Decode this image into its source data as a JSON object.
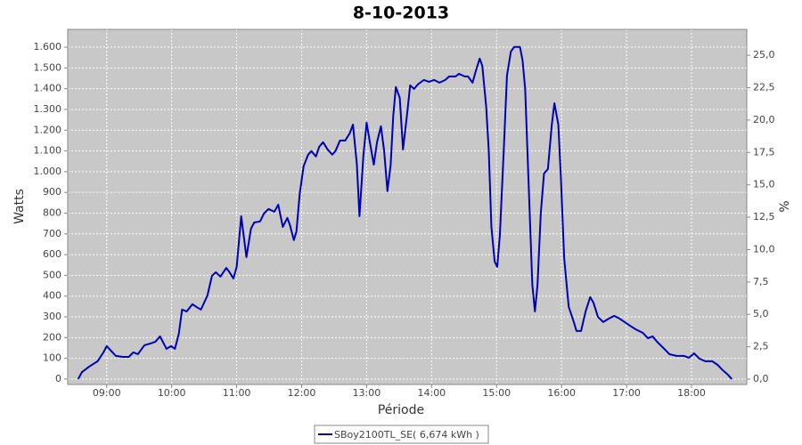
{
  "chart_data": {
    "type": "line",
    "title": "8-10-2013",
    "x_label": "Période",
    "y_label": "Watts",
    "y2_label": "%",
    "grid": true,
    "legend_position": "bottom",
    "xlim": [
      8.4,
      18.85
    ],
    "xticks": [
      {
        "value": 9,
        "label": "09:00"
      },
      {
        "value": 10,
        "label": "10:00"
      },
      {
        "value": 11,
        "label": "11:00"
      },
      {
        "value": 12,
        "label": "12:00"
      },
      {
        "value": 13,
        "label": "13:00"
      },
      {
        "value": 14,
        "label": "14:00"
      },
      {
        "value": 15,
        "label": "15:00"
      },
      {
        "value": 16,
        "label": "16:00"
      },
      {
        "value": 17,
        "label": "17:00"
      },
      {
        "value": 18,
        "label": "18:00"
      }
    ],
    "ylim": [
      -26,
      1686
    ],
    "yticks": [
      0,
      100,
      200,
      300,
      400,
      500,
      600,
      700,
      800,
      900,
      {
        "value": 1000,
        "label": "1.000"
      },
      {
        "value": 1100,
        "label": "1.100"
      },
      {
        "value": 1200,
        "label": "1.200"
      },
      {
        "value": 1300,
        "label": "1.300"
      },
      {
        "value": 1400,
        "label": "1.400"
      },
      {
        "value": 1500,
        "label": "1.500"
      },
      {
        "value": 1600,
        "label": "1.600"
      }
    ],
    "y2lim": [
      -0.41,
      27.0
    ],
    "y2ticks": [
      {
        "value": 0,
        "label": "0,0"
      },
      {
        "value": 2.5,
        "label": "2,5"
      },
      {
        "value": 5,
        "label": "5,0"
      },
      {
        "value": 7.5,
        "label": "7,5"
      },
      {
        "value": 10,
        "label": "10,0"
      },
      {
        "value": 12.5,
        "label": "12,5"
      },
      {
        "value": 15,
        "label": "15,0"
      },
      {
        "value": 17.5,
        "label": "17,5"
      },
      {
        "value": 20,
        "label": "20,0"
      },
      {
        "value": 22.5,
        "label": "22,5"
      },
      {
        "value": 25,
        "label": "25,0"
      }
    ],
    "x": [
      8.56,
      8.62,
      8.73,
      8.86,
      8.95,
      9.0,
      9.05,
      9.14,
      9.25,
      9.34,
      9.41,
      9.48,
      9.58,
      9.68,
      9.75,
      9.82,
      9.92,
      9.99,
      10.05,
      10.11,
      10.16,
      10.23,
      10.32,
      10.38,
      10.45,
      10.55,
      10.62,
      10.68,
      10.75,
      10.84,
      10.89,
      10.95,
      11.0,
      11.07,
      11.15,
      11.22,
      11.27,
      11.36,
      11.42,
      11.49,
      11.58,
      11.64,
      11.71,
      11.78,
      11.82,
      11.88,
      11.92,
      11.97,
      12.03,
      12.1,
      12.15,
      12.22,
      12.27,
      12.33,
      12.4,
      12.47,
      12.52,
      12.59,
      12.67,
      12.74,
      12.79,
      12.85,
      12.89,
      12.95,
      13.0,
      13.05,
      13.11,
      13.16,
      13.22,
      13.27,
      13.32,
      13.37,
      13.41,
      13.45,
      13.51,
      13.56,
      13.62,
      13.67,
      13.73,
      13.79,
      13.88,
      13.96,
      14.04,
      14.12,
      14.21,
      14.27,
      14.37,
      14.42,
      14.51,
      14.56,
      14.63,
      14.68,
      14.74,
      14.78,
      14.84,
      14.88,
      14.92,
      14.97,
      15.01,
      15.05,
      15.11,
      15.16,
      15.22,
      15.27,
      15.36,
      15.4,
      15.44,
      15.49,
      15.55,
      15.59,
      15.63,
      15.68,
      15.73,
      15.79,
      15.85,
      15.89,
      15.95,
      15.99,
      16.04,
      16.11,
      16.18,
      16.23,
      16.3,
      16.37,
      16.44,
      16.49,
      16.56,
      16.64,
      16.73,
      16.81,
      16.89,
      16.97,
      17.05,
      17.14,
      17.25,
      17.33,
      17.4,
      17.47,
      17.58,
      17.66,
      17.77,
      17.88,
      17.96,
      18.04,
      18.12,
      18.21,
      18.32,
      18.4,
      18.48,
      18.56,
      18.62
    ],
    "series": [
      {
        "name": "SBoy2100TL_SE( 6,674 kWh )",
        "color": "#0000b4",
        "values": [
          0,
          34,
          60,
          86,
          129,
          159,
          142,
          112,
          107,
          107,
          129,
          120,
          163,
          172,
          180,
          206,
          146,
          159,
          146,
          219,
          335,
          326,
          361,
          348,
          335,
          403,
          498,
          515,
          494,
          536,
          515,
          485,
          541,
          785,
          588,
          725,
          755,
          760,
          798,
          820,
          807,
          841,
          734,
          777,
          742,
          670,
          712,
          893,
          1026,
          1082,
          1099,
          1073,
          1120,
          1142,
          1107,
          1082,
          1099,
          1150,
          1150,
          1185,
          1227,
          1034,
          785,
          1077,
          1236,
          1142,
          1034,
          1142,
          1219,
          1099,
          906,
          1034,
          1270,
          1408,
          1356,
          1107,
          1270,
          1416,
          1399,
          1421,
          1442,
          1433,
          1442,
          1429,
          1442,
          1459,
          1459,
          1472,
          1459,
          1459,
          1429,
          1485,
          1545,
          1511,
          1313,
          1099,
          734,
          567,
          541,
          691,
          1099,
          1464,
          1579,
          1601,
          1601,
          1536,
          1399,
          970,
          455,
          326,
          455,
          798,
          991,
          1013,
          1227,
          1330,
          1227,
          970,
          584,
          348,
          283,
          232,
          232,
          326,
          395,
          369,
          300,
          275,
          292,
          305,
          292,
          275,
          258,
          240,
          223,
          197,
          206,
          180,
          146,
          120,
          112,
          112,
          103,
          124,
          99,
          86,
          86,
          69,
          43,
          21,
          0
        ]
      }
    ]
  }
}
